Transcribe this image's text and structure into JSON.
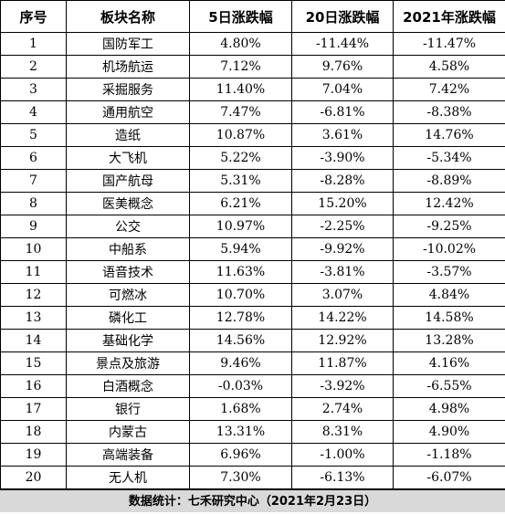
{
  "table": {
    "headers": [
      "序号",
      "板块名称",
      "5日涨跌幅",
      "20日涨跌幅",
      "2021年涨跌幅"
    ],
    "rows": [
      [
        "1",
        "国防军工",
        "4.80%",
        "-11.44%",
        "-11.47%"
      ],
      [
        "2",
        "机场航运",
        "7.12%",
        "9.76%",
        "4.58%"
      ],
      [
        "3",
        "采掘服务",
        "11.40%",
        "7.04%",
        "7.42%"
      ],
      [
        "4",
        "通用航空",
        "7.47%",
        "-6.81%",
        "-8.38%"
      ],
      [
        "5",
        "造纸",
        "10.87%",
        "3.61%",
        "14.76%"
      ],
      [
        "6",
        "大飞机",
        "5.22%",
        "-3.90%",
        "-5.34%"
      ],
      [
        "7",
        "国产航母",
        "5.31%",
        "-8.28%",
        "-8.89%"
      ],
      [
        "8",
        "医美概念",
        "6.21%",
        "15.20%",
        "12.42%"
      ],
      [
        "9",
        "公交",
        "10.97%",
        "-2.25%",
        "-9.25%"
      ],
      [
        "10",
        "中船系",
        "5.94%",
        "-9.92%",
        "-10.02%"
      ],
      [
        "11",
        "语音技术",
        "11.63%",
        "-3.81%",
        "-3.57%"
      ],
      [
        "12",
        "可燃冰",
        "10.70%",
        "3.07%",
        "4.84%"
      ],
      [
        "13",
        "磷化工",
        "12.78%",
        "14.22%",
        "14.58%"
      ],
      [
        "14",
        "基础化学",
        "14.56%",
        "12.92%",
        "13.28%"
      ],
      [
        "15",
        "景点及旅游",
        "9.46%",
        "11.87%",
        "4.16%"
      ],
      [
        "16",
        "白酒概念",
        "-0.03%",
        "-3.92%",
        "-6.55%"
      ],
      [
        "17",
        "银行",
        "1.68%",
        "2.74%",
        "4.98%"
      ],
      [
        "18",
        "内蒙古",
        "13.31%",
        "8.31%",
        "4.90%"
      ],
      [
        "19",
        "高端装备",
        "6.96%",
        "-1.00%",
        "-1.18%"
      ],
      [
        "20",
        "无人机",
        "7.30%",
        "-6.13%",
        "-6.07%"
      ]
    ]
  },
  "footer": {
    "source": "数据统计：七禾研究中心（2021年2月23日）"
  },
  "colors": {
    "footer_background": "#d9d9d9",
    "border": "#000000"
  }
}
